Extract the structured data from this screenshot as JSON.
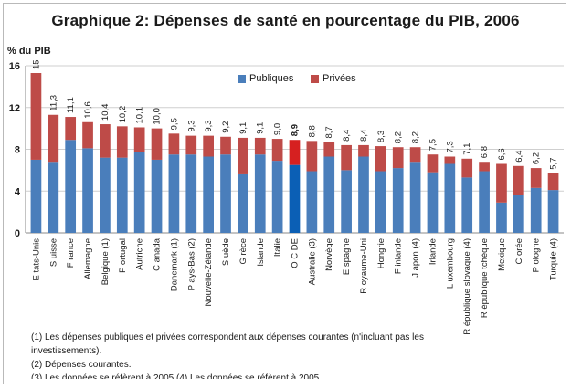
{
  "title": "Graphique 2: Dépenses de santé en pourcentage du PIB, 2006",
  "colors": {
    "public": "#4a7ebb",
    "private": "#be4b48",
    "public_highlight": "#0b5fb5",
    "private_highlight": "#d62020",
    "grid": "#cfcfcf"
  },
  "chart_data": {
    "type": "bar",
    "stacked": true,
    "title": "Graphique 2: Dépenses de santé en pourcentage du PIB, 2006",
    "ylabel": "% du PIB",
    "ylim": [
      0,
      16
    ],
    "yticks": [
      "0",
      "4",
      "8",
      "12",
      "16"
    ],
    "grid": true,
    "legend": "top-center",
    "categories": [
      "E tats-Unis",
      "S uisse",
      "F rance",
      "Allemagne",
      "Belgique (1)",
      "P ortugal",
      "Autriche",
      "C anada",
      "Danemark (1)",
      "P ays-Bas (2)",
      "Nouvelle-Zélande",
      "S uède",
      "G rèce",
      "Islande",
      "Italie",
      "O C DE ",
      "Australie (3)",
      "Norvège",
      "E spagne",
      "R oyaume-Uni",
      "Hongrie",
      "F inlande",
      "J apon (4)",
      "Irlande",
      "L uxembourg",
      "R épublique slovaque (4)",
      "R épublique tchèque",
      "Mexique",
      "C orée",
      "P ologne",
      "Turquie (4)"
    ],
    "totals_labels": [
      "15",
      "11,3",
      "11,1",
      "10,6",
      "10,4",
      "10,2",
      "10,1",
      "10,0",
      "9,5",
      "9,3",
      "9,3",
      "9,2",
      "9,1",
      "9,1",
      "9,0",
      "8,9",
      "8,8",
      "8,7",
      "8,4",
      "8,4",
      "8,3",
      "8,2",
      "8,2",
      "7,5",
      "7,3",
      "7,1",
      "6,8",
      "6,6",
      "6,4",
      "6,2",
      "5,7"
    ],
    "highlight_index": 15,
    "series": [
      {
        "name": "Publiques",
        "values": [
          7.0,
          6.8,
          8.9,
          8.1,
          7.2,
          7.2,
          7.7,
          7.0,
          7.5,
          7.5,
          7.3,
          7.5,
          5.6,
          7.5,
          6.9,
          6.5,
          5.9,
          7.3,
          6.0,
          7.3,
          5.9,
          6.2,
          6.8,
          5.8,
          6.6,
          5.3,
          5.9,
          2.9,
          3.6,
          4.3,
          4.1
        ]
      },
      {
        "name": "Privées",
        "values": [
          8.3,
          4.5,
          2.2,
          2.5,
          3.2,
          3.0,
          2.4,
          3.0,
          2.0,
          1.8,
          2.0,
          1.7,
          3.5,
          1.6,
          2.1,
          2.4,
          2.9,
          1.4,
          2.4,
          1.1,
          2.4,
          2.0,
          1.4,
          1.7,
          0.7,
          1.8,
          0.9,
          3.7,
          2.8,
          1.9,
          1.6
        ]
      }
    ]
  },
  "notes": [
    "(1) Les dépenses publiques et privées correspondent aux dépenses courantes (n'incluant pas les investissements).",
    "(2) Dépenses courantes.",
    "(3) Les données se réfèrent à 2005 (4) Les données se réfèrent à 2005."
  ]
}
